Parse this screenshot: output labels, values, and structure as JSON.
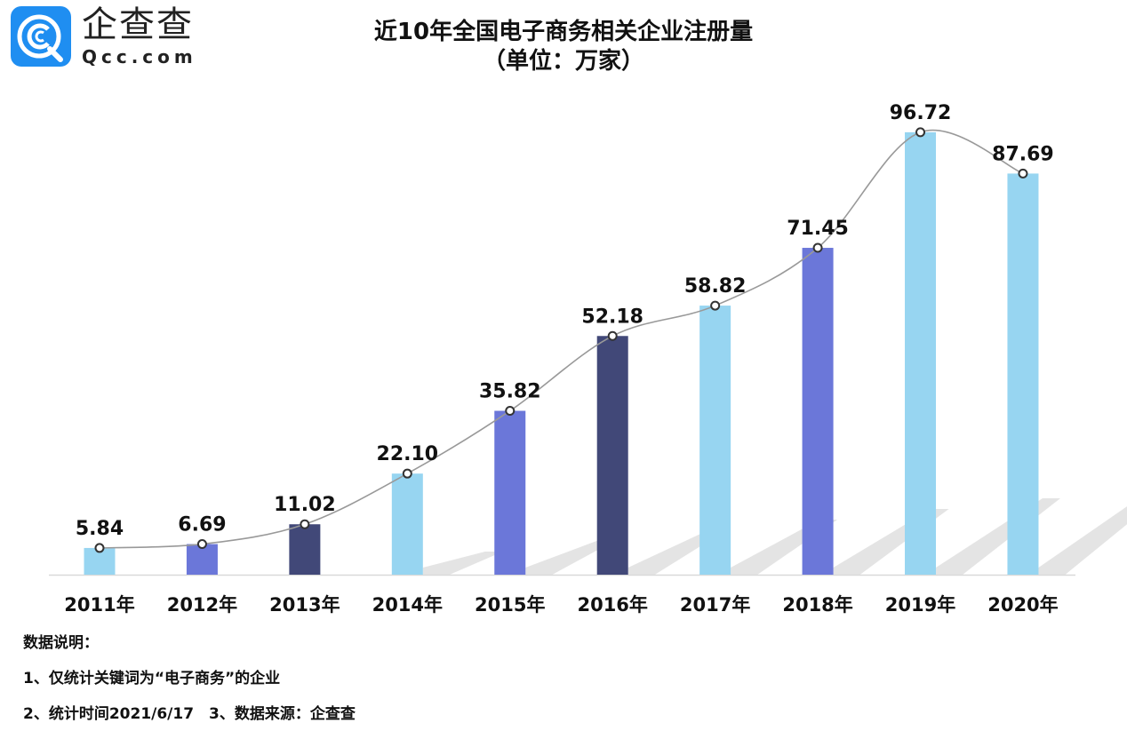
{
  "logo": {
    "text_cn": "企查查",
    "text_en": "Qcc.com"
  },
  "chart_data": {
    "type": "bar",
    "title": "近10年全国电子商务相关企业注册量",
    "subtitle": "（单位：万家）",
    "categories": [
      "2011年",
      "2012年",
      "2013年",
      "2014年",
      "2015年",
      "2016年",
      "2017年",
      "2018年",
      "2019年",
      "2020年"
    ],
    "values": [
      5.84,
      6.69,
      11.02,
      22.1,
      35.82,
      52.18,
      58.82,
      71.45,
      96.72,
      87.69
    ],
    "value_labels": [
      "5.84",
      "6.69",
      "11.02",
      "22.10",
      "35.82",
      "52.18",
      "58.82",
      "71.45",
      "96.72",
      "87.69"
    ],
    "bar_colors": [
      "#97d5f1",
      "#6b77d9",
      "#414878",
      "#97d5f1",
      "#6b77d9",
      "#414878",
      "#97d5f1",
      "#6b77d9",
      "#97d5f1",
      "#97d5f1"
    ],
    "overlay_line": {
      "type": "smooth-line",
      "color": "#999999",
      "markers": "hollow-circle"
    },
    "xlabel": "",
    "ylabel": "",
    "ylim": [
      0,
      100
    ],
    "grid": false,
    "legend": "none"
  },
  "notes": {
    "heading": "数据说明：",
    "line1": "1、仅统计关键词为“电子商务”的企业",
    "line2": "2、统计时间2021/6/17　3、数据来源：企查查"
  }
}
